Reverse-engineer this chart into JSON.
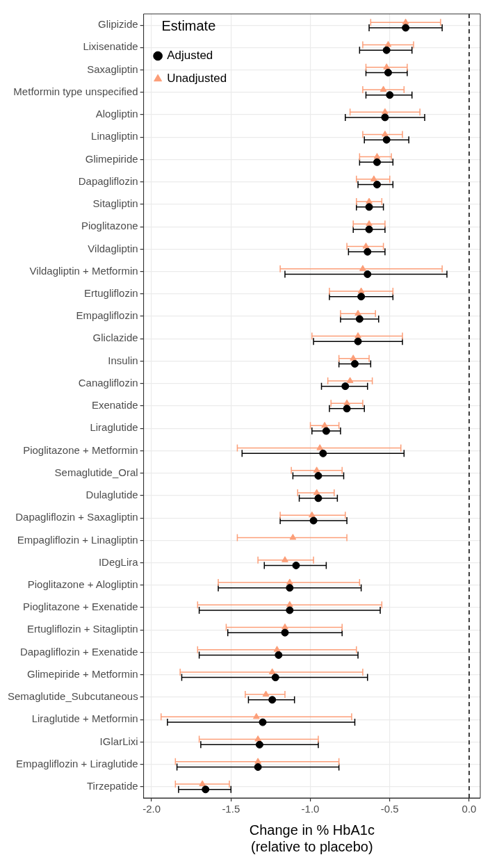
{
  "chart_data": {
    "type": "scatter",
    "orientation": "horizontal",
    "xlabel": "Change in % HbA1c\n(relative to placebo)",
    "legend_title": "Estimate",
    "legend": "top left",
    "grid": true,
    "categories": [
      "Glipizide",
      "Lixisenatide",
      "Saxagliptin",
      "Metformin type unspecified",
      "Alogliptin",
      "Linagliptin",
      "Glimepiride",
      "Dapagliflozin",
      "Sitagliptin",
      "Pioglitazone",
      "Vildagliptin",
      "Vildagliptin + Metformin",
      "Ertugliflozin",
      "Empagliflozin",
      "Gliclazide",
      "Insulin",
      "Canagliflozin",
      "Exenatide",
      "Liraglutide",
      "Pioglitazone + Metformin",
      "Semaglutide_Oral",
      "Dulaglutide",
      "Dapagliflozin + Saxagliptin",
      "Empagliflozin + Linagliptin",
      "IDegLira",
      "Pioglitazone + Alogliptin",
      "Pioglitazone + Exenatide",
      "Ertugliflozin + Sitagliptin",
      "Dapagliflozin + Exenatide",
      "Glimepiride + Metformin",
      "Semaglutide_Subcutaneous",
      "Liraglutide + Metformin",
      "IGlarLixi",
      "Empagliflozin + Liraglutide",
      "Tirzepatide"
    ],
    "xlim": [
      -2.05,
      0.07
    ],
    "xticks": [
      {
        "value": -2,
        "label": "-2.0"
      },
      {
        "value": -1.5,
        "label": "-1.5"
      },
      {
        "value": -1,
        "label": "-1.0"
      },
      {
        "value": -0.5,
        "label": "-0.5"
      },
      {
        "value": 0,
        "label": "0.0"
      }
    ],
    "ref_lines": [
      {
        "axis": "x",
        "value": 0,
        "color": "#000000",
        "line_style": "dashed"
      }
    ],
    "series": [
      {
        "name": "Adjusted",
        "color": "#000000",
        "marker": "circle",
        "values": [
          -0.4,
          -0.52,
          -0.51,
          -0.5,
          -0.53,
          -0.52,
          -0.58,
          -0.58,
          -0.63,
          -0.63,
          -0.64,
          -0.64,
          -0.68,
          -0.69,
          -0.7,
          -0.72,
          -0.78,
          -0.77,
          -0.9,
          -0.92,
          -0.95,
          -0.95,
          -0.98,
          null,
          -1.09,
          -1.13,
          -1.13,
          -1.16,
          -1.2,
          -1.22,
          -1.24,
          -1.3,
          -1.32,
          -1.33,
          -1.66
        ],
        "errors": [
          [
            -0.63,
            -0.17
          ],
          [
            -0.69,
            -0.36
          ],
          [
            -0.65,
            -0.39
          ],
          [
            -0.65,
            -0.36
          ],
          [
            -0.78,
            -0.28
          ],
          [
            -0.66,
            -0.38
          ],
          [
            -0.69,
            -0.48
          ],
          [
            -0.7,
            -0.48
          ],
          [
            -0.71,
            -0.54
          ],
          [
            -0.73,
            -0.53
          ],
          [
            -0.76,
            -0.53
          ],
          [
            -1.16,
            -0.14
          ],
          [
            -0.88,
            -0.48
          ],
          [
            -0.81,
            -0.57
          ],
          [
            -0.98,
            -0.42
          ],
          [
            -0.82,
            -0.62
          ],
          [
            -0.93,
            -0.64
          ],
          [
            -0.88,
            -0.66
          ],
          [
            -0.99,
            -0.81
          ],
          [
            -1.43,
            -0.41
          ],
          [
            -1.11,
            -0.79
          ],
          [
            -1.07,
            -0.83
          ],
          [
            -1.19,
            -0.77
          ],
          null,
          [
            -1.29,
            -0.9
          ],
          [
            -1.58,
            -0.68
          ],
          [
            -1.7,
            -0.56
          ],
          [
            -1.52,
            -0.8
          ],
          [
            -1.7,
            -0.7
          ],
          [
            -1.81,
            -0.64
          ],
          [
            -1.39,
            -1.1
          ],
          [
            -1.9,
            -0.72
          ],
          [
            -1.69,
            -0.95
          ],
          [
            -1.84,
            -0.82
          ],
          [
            -1.83,
            -1.5
          ]
        ]
      },
      {
        "name": "Unadjusted",
        "color": "#fc9e78",
        "marker": "triangle",
        "values": [
          -0.4,
          -0.51,
          -0.52,
          -0.54,
          -0.53,
          -0.53,
          -0.58,
          -0.6,
          -0.63,
          -0.63,
          -0.65,
          -0.67,
          -0.68,
          -0.7,
          -0.7,
          -0.73,
          -0.75,
          -0.77,
          -0.91,
          -0.94,
          -0.96,
          -0.96,
          -0.99,
          -1.11,
          -1.16,
          -1.13,
          -1.13,
          -1.16,
          -1.21,
          -1.24,
          -1.28,
          -1.34,
          -1.33,
          -1.33,
          -1.68
        ],
        "errors": [
          [
            -0.62,
            -0.18
          ],
          [
            -0.67,
            -0.35
          ],
          [
            -0.65,
            -0.39
          ],
          [
            -0.67,
            -0.41
          ],
          [
            -0.75,
            -0.31
          ],
          [
            -0.67,
            -0.42
          ],
          [
            -0.69,
            -0.49
          ],
          [
            -0.71,
            -0.5
          ],
          [
            -0.71,
            -0.55
          ],
          [
            -0.73,
            -0.53
          ],
          [
            -0.77,
            -0.54
          ],
          [
            -1.19,
            -0.17
          ],
          [
            -0.88,
            -0.48
          ],
          [
            -0.81,
            -0.59
          ],
          [
            -0.99,
            -0.42
          ],
          [
            -0.82,
            -0.63
          ],
          [
            -0.89,
            -0.61
          ],
          [
            -0.87,
            -0.67
          ],
          [
            -1.0,
            -0.82
          ],
          [
            -1.46,
            -0.43
          ],
          [
            -1.12,
            -0.8
          ],
          [
            -1.08,
            -0.85
          ],
          [
            -1.19,
            -0.78
          ],
          [
            -1.46,
            -0.77
          ],
          [
            -1.33,
            -0.98
          ],
          [
            -1.58,
            -0.69
          ],
          [
            -1.71,
            -0.55
          ],
          [
            -1.53,
            -0.8
          ],
          [
            -1.71,
            -0.71
          ],
          [
            -1.82,
            -0.67
          ],
          [
            -1.41,
            -1.16
          ],
          [
            -1.94,
            -0.74
          ],
          [
            -1.7,
            -0.95
          ],
          [
            -1.85,
            -0.82
          ],
          [
            -1.85,
            -1.51
          ]
        ]
      }
    ]
  }
}
